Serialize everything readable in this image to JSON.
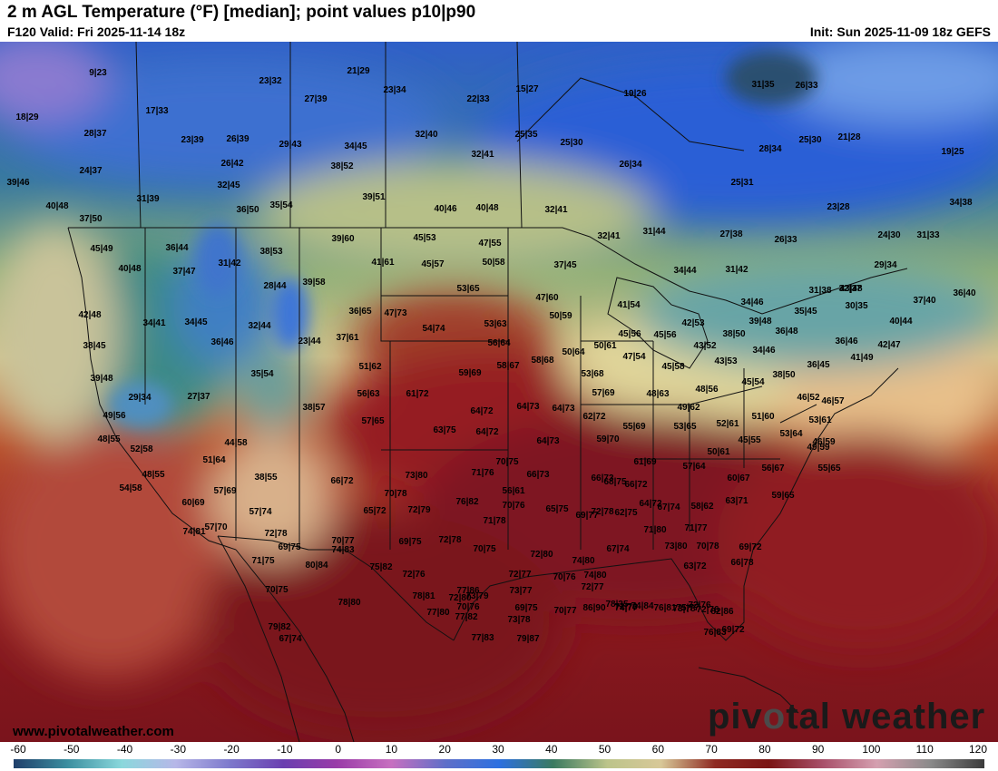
{
  "header": {
    "title": "2 m AGL Temperature (°F) [median]; point values p10|p90",
    "valid": "F120 Valid: Fri 2025-11-14 18z",
    "init": "Init: Sun 2025-11-09 18z GEFS"
  },
  "footer": {
    "website": "www.pivotalweather.com",
    "watermark_a": "piv",
    "watermark_b": "tal weather"
  },
  "colorbar": {
    "ticks": [
      "-60",
      "-50",
      "-40",
      "-30",
      "-20",
      "-10",
      "0",
      "10",
      "20",
      "30",
      "40",
      "50",
      "60",
      "70",
      "80",
      "90",
      "100",
      "110",
      "120"
    ],
    "min": -60,
    "max": 120
  },
  "point_values": [
    "9|23",
    "21|29",
    "23|32",
    "23|34",
    "22|33",
    "15|27",
    "19|26",
    "31|35",
    "26|33",
    "18|29",
    "17|33",
    "27|39",
    "28|37",
    "23|39",
    "26|39",
    "29|43",
    "34|45",
    "32|40",
    "25|35",
    "25|30",
    "25|30",
    "21|28",
    "32|41",
    "19|25",
    "24|37",
    "26|42",
    "38|52",
    "26|34",
    "28|34",
    "39|46",
    "32|45",
    "25|31",
    "31|39",
    "36|50",
    "35|54",
    "39|51",
    "40|46",
    "40|48",
    "32|41",
    "23|28",
    "40|48",
    "37|50",
    "34|38",
    "39|60",
    "45|53",
    "47|55",
    "32|41",
    "31|44",
    "27|38",
    "26|33",
    "24|30",
    "31|33",
    "45|49",
    "36|44",
    "38|53",
    "41|61",
    "45|57",
    "50|58",
    "37|45",
    "34|44",
    "31|42",
    "29|34",
    "40|48",
    "37|47",
    "31|42",
    "39|58",
    "28|44",
    "53|65",
    "43|48",
    "47|60",
    "31|38",
    "32|37",
    "37|40",
    "36|40",
    "36|65",
    "47|73",
    "41|54",
    "34|46",
    "30|35",
    "42|48",
    "34|41",
    "34|45",
    "32|44",
    "50|59",
    "42|53",
    "39|48",
    "35|45",
    "40|44",
    "54|74",
    "53|63",
    "38|50",
    "36|48",
    "38|45",
    "36|46",
    "23|44",
    "37|61",
    "45|56",
    "45|56",
    "36|46",
    "42|47",
    "56|64",
    "50|64",
    "50|61",
    "43|52",
    "34|46",
    "58|67",
    "58|68",
    "47|54",
    "43|53",
    "41|49",
    "39|48",
    "51|62",
    "59|69",
    "53|68",
    "45|58",
    "38|50",
    "36|45",
    "35|54",
    "45|54",
    "29|34",
    "27|37",
    "56|63",
    "61|72",
    "57|69",
    "48|63",
    "48|56",
    "46|52",
    "38|57",
    "64|73",
    "64|73",
    "49|62",
    "46|57",
    "49|56",
    "57|65",
    "64|72",
    "62|72",
    "55|69",
    "53|65",
    "52|61",
    "51|60",
    "53|61",
    "63|75",
    "64|72",
    "48|55",
    "53|64",
    "45|55",
    "64|73",
    "59|70",
    "55|65",
    "44|58",
    "46|59",
    "50|61",
    "49|59",
    "52|58",
    "70|75",
    "61|69",
    "57|64",
    "51|64",
    "56|67",
    "48|55",
    "71|76",
    "66|73",
    "66|73",
    "54|58",
    "38|55",
    "73|80",
    "60|67",
    "57|69",
    "68|75",
    "66|72",
    "66|72",
    "56|61",
    "70|78",
    "59|65",
    "60|69",
    "76|82",
    "63|71",
    "64|72",
    "62|75",
    "72|78",
    "72|79",
    "69|77",
    "67|74",
    "70|76",
    "65|72",
    "58|62",
    "65|75",
    "71|78",
    "57|74",
    "74|81",
    "72|78",
    "70|77",
    "69|75",
    "71|80",
    "71|77",
    "57|70",
    "67|74",
    "74|80",
    "73|80",
    "70|78",
    "66|78",
    "69|72",
    "63|72",
    "69|75",
    "74|80",
    "72|78",
    "71|75",
    "70|75",
    "72|80",
    "72|76",
    "72|80",
    "75|82",
    "70|76",
    "74|83",
    "73|79",
    "72|77",
    "78|35",
    "80|84",
    "77|86",
    "72|76",
    "70|75",
    "73|77",
    "74|84",
    "72|77",
    "70|77",
    "73|78",
    "72|76",
    "82|86",
    "70|76",
    "79|82",
    "73|78",
    "78|81",
    "79|87",
    "76|81",
    "86|90",
    "74|77",
    "75|77",
    "72|76",
    "77|82",
    "69|75",
    "78|80",
    "77|80",
    "69|72",
    "76|83",
    "77|83",
    "67|74"
  ]
}
